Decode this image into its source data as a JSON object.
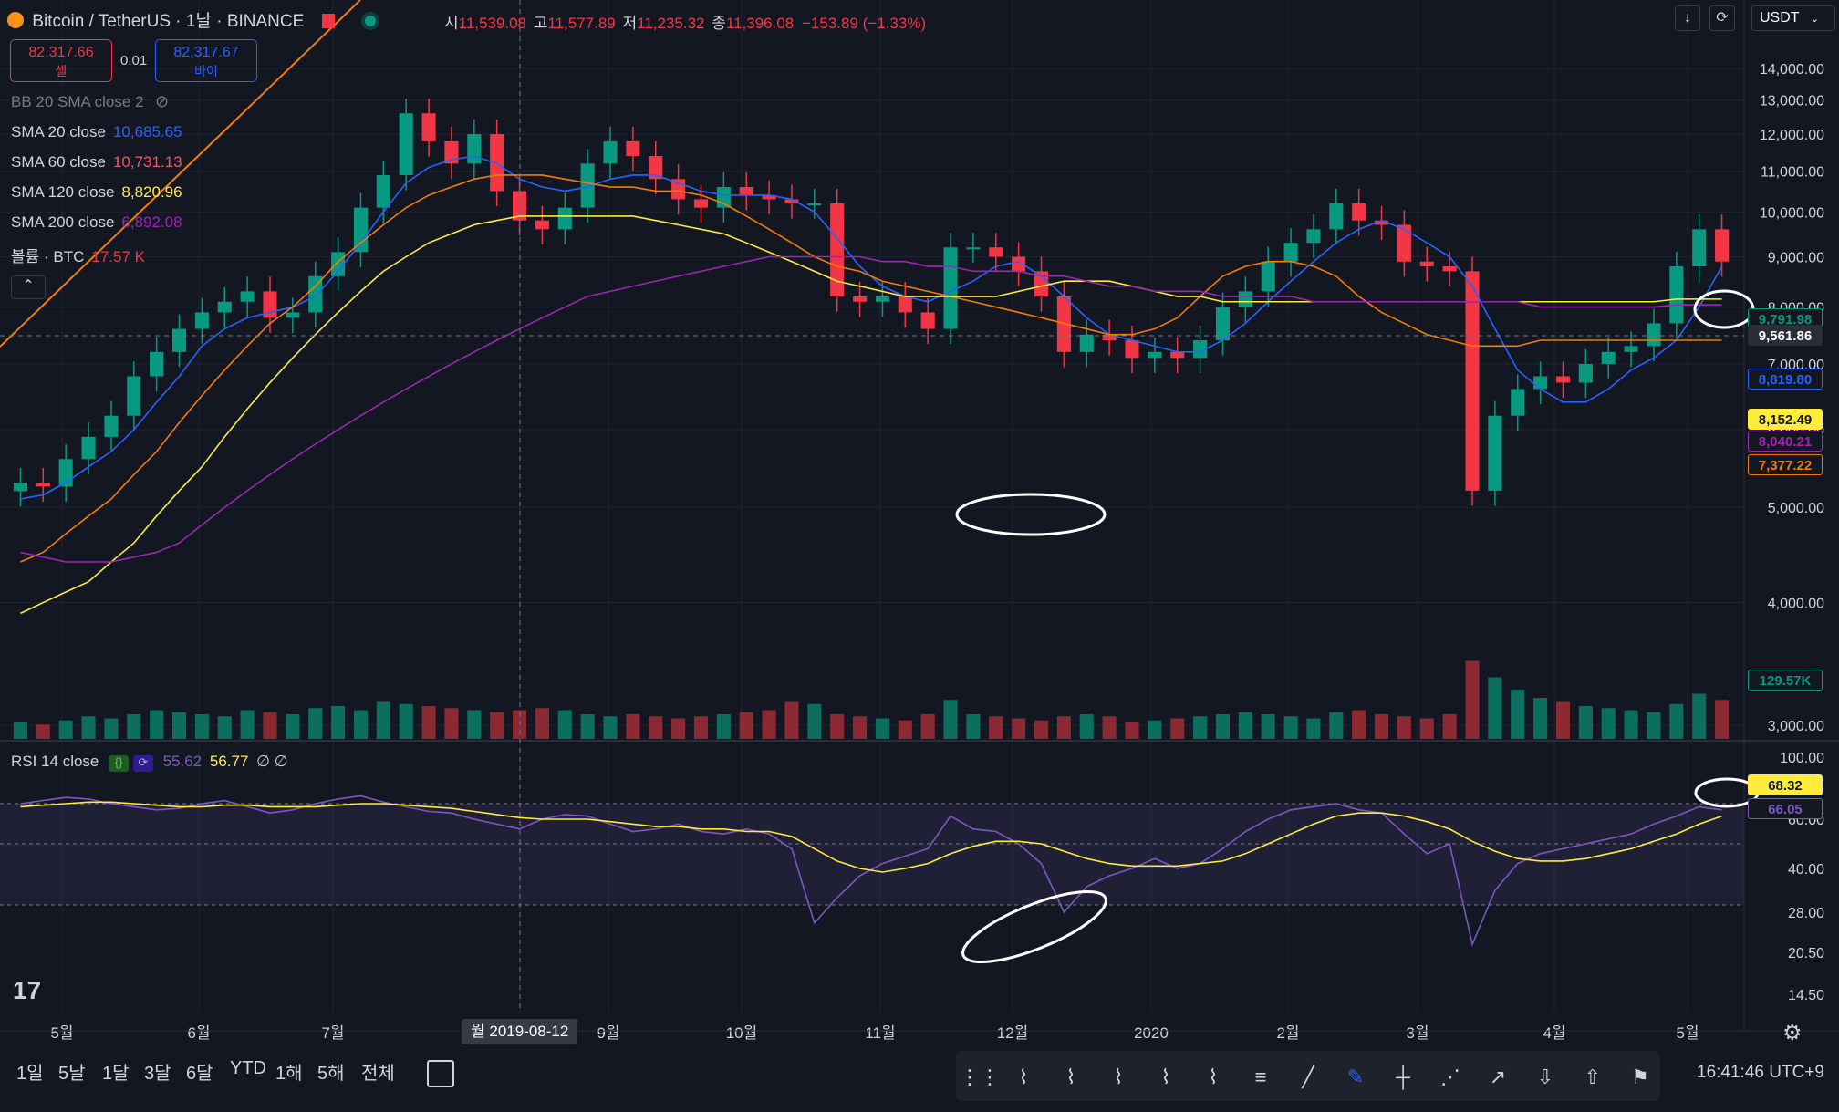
{
  "header": {
    "symbol": "Bitcoin / TetherUS · 1날 · BINANCE",
    "open_label": "시",
    "open": "11,539.08",
    "high_label": "고",
    "high": "11,577.89",
    "low_label": "저",
    "low": "11,235.32",
    "close_label": "종",
    "close": "11,396.08",
    "change": "−153.89 (−1.33%)",
    "currency": "USDT"
  },
  "order": {
    "sell_price": "82,317.66",
    "sell_label": "셀",
    "spread": "0.01",
    "buy_price": "82,317.67",
    "buy_label": "바이"
  },
  "indicators": [
    {
      "label": "BB 20 SMA close 2",
      "value": "",
      "color": "#787b86"
    },
    {
      "label": "SMA 20 close",
      "value": "10,685.65",
      "color": "#2962ff"
    },
    {
      "label": "SMA 60 close",
      "value": "10,731.13",
      "color": "#f7525f"
    },
    {
      "label": "SMA 120 close",
      "value": "8,820.96",
      "color": "#ffeb3b"
    },
    {
      "label": "SMA 200 close",
      "value": "6,892.08",
      "color": "#9c27b0"
    },
    {
      "label": "볼륨 · BTC",
      "value": "17.57 K",
      "color": "#f23645"
    }
  ],
  "rsi": {
    "label": "RSI 14 close",
    "value1": "55.62",
    "value2": "56.77",
    "value3": "∅ ∅"
  },
  "price_labels": [
    {
      "text": "9,791.98",
      "color": "#089981"
    },
    {
      "text": "9,561.86",
      "color": "#2a2e39"
    },
    {
      "text": "8,819.80",
      "color": "#2962ff"
    },
    {
      "text": "8,152.49",
      "color": "#ffeb3b"
    },
    {
      "text": "8,040.21",
      "color": "#9c27b0"
    },
    {
      "text": "7,377.22",
      "color": "#f57c00"
    },
    {
      "text": "129.57K",
      "color": "#089981"
    },
    {
      "text": "68.32",
      "color": "#ffeb3b"
    },
    {
      "text": "66.05",
      "color": "#7e57c2"
    }
  ],
  "crosshair_date": "월 2019-08-12",
  "toolbar": {
    "ranges": [
      "1일",
      "5날",
      "1달",
      "3달",
      "6달",
      "YTD",
      "1해",
      "5해",
      "전체"
    ],
    "clock": "16:41:46 UTC+9"
  },
  "colors": {
    "bg": "#131722",
    "up": "#089981",
    "down": "#f23645",
    "sma20": "#2962ff",
    "sma60": "#f57c00",
    "sma120": "#ffeb3b",
    "sma200": "#9c27b0",
    "rsi": "#7e57c2",
    "rsi_ma": "#ffeb3b"
  },
  "chart_data": [
    {
      "type": "candlestick",
      "title": "Bitcoin / TetherUS · 1날 · BINANCE",
      "x_ticks": [
        "5월",
        "6월",
        "7월",
        "월 2019-08-12",
        "9월",
        "10월",
        "11월",
        "12월",
        "2020",
        "2월",
        "3월",
        "4월",
        "5월"
      ],
      "y_ticks": [
        "14,000.00",
        "13,000.00",
        "12,000.00",
        "11,000.00",
        "10,000.00",
        "9,000.00",
        "8,000.00",
        "7,000.00",
        "6,000.00",
        "5,000.00",
        "4,000.00",
        "3,000.00"
      ],
      "ylim": [
        2800,
        14600
      ],
      "grid": true,
      "series": [
        {
          "name": "close",
          "values": [
            5300,
            5250,
            5600,
            5900,
            6200,
            6800,
            7200,
            7600,
            7900,
            8100,
            8300,
            7800,
            7900,
            8600,
            9100,
            10100,
            10900,
            12600,
            11800,
            11200,
            12000,
            10500,
            9800,
            9600,
            10100,
            11200,
            11800,
            11400,
            10800,
            10300,
            10100,
            10600,
            10400,
            10300,
            10200,
            10200,
            8200,
            8100,
            8200,
            7900,
            7600,
            9200,
            9200,
            9000,
            8700,
            8200,
            7200,
            7500,
            7400,
            7100,
            7200,
            7100,
            7400,
            8000,
            8300,
            8900,
            9300,
            9600,
            10200,
            9800,
            9700,
            8900,
            8800,
            8700,
            5200,
            6200,
            6600,
            6800,
            6700,
            7000,
            7200,
            7300,
            7700,
            8800,
            9600,
            8900
          ]
        },
        {
          "name": "SMA 20 close",
          "values": [
            5100,
            5150,
            5300,
            5500,
            5700,
            6000,
            6400,
            6800,
            7300,
            7600,
            7800,
            7900,
            8000,
            8200,
            8700,
            9300,
            10000,
            10700,
            11100,
            11300,
            11400,
            11200,
            10800,
            10600,
            10500,
            10600,
            10800,
            10900,
            10900,
            10700,
            10500,
            10400,
            10400,
            10400,
            10300,
            10000,
            9400,
            8800,
            8400,
            8200,
            8100,
            8300,
            8500,
            8800,
            8900,
            8600,
            8200,
            7800,
            7500,
            7400,
            7300,
            7200,
            7200,
            7400,
            7700,
            8100,
            8500,
            8900,
            9300,
            9600,
            9800,
            9600,
            9300,
            9000,
            8400,
            7600,
            6900,
            6600,
            6400,
            6400,
            6600,
            6900,
            7100,
            7400,
            8000,
            8800
          ]
        },
        {
          "name": "SMA 60 close",
          "values": [
            4400,
            4500,
            4700,
            4900,
            5100,
            5400,
            5700,
            6100,
            6500,
            6900,
            7300,
            7700,
            8000,
            8400,
            8900,
            9300,
            9700,
            10100,
            10400,
            10600,
            10800,
            10900,
            10900,
            10900,
            10800,
            10700,
            10600,
            10600,
            10500,
            10500,
            10400,
            10200,
            9900,
            9600,
            9300,
            9000,
            8800,
            8700,
            8500,
            8400,
            8300,
            8200,
            8100,
            8000,
            7900,
            7800,
            7700,
            7600,
            7500,
            7500,
            7600,
            7800,
            8200,
            8600,
            8800,
            8900,
            8900,
            8800,
            8600,
            8200,
            7900,
            7700,
            7500,
            7400,
            7300,
            7300,
            7300,
            7400,
            7400,
            7400,
            7400,
            7400,
            7400,
            7400,
            7400,
            7400
          ]
        },
        {
          "name": "SMA 120 close",
          "values": [
            3900,
            4000,
            4100,
            4200,
            4400,
            4600,
            4900,
            5200,
            5500,
            5900,
            6300,
            6700,
            7100,
            7500,
            7900,
            8300,
            8700,
            9000,
            9300,
            9500,
            9700,
            9800,
            9900,
            9900,
            9900,
            9900,
            9900,
            9900,
            9800,
            9700,
            9600,
            9500,
            9300,
            9100,
            8900,
            8700,
            8500,
            8400,
            8300,
            8200,
            8200,
            8200,
            8200,
            8200,
            8300,
            8400,
            8500,
            8500,
            8500,
            8400,
            8300,
            8200,
            8200,
            8100,
            8100,
            8100,
            8100,
            8100,
            8100,
            8100,
            8100,
            8100,
            8100,
            8100,
            8100,
            8100,
            8100,
            8100,
            8100,
            8100,
            8100,
            8100,
            8100,
            8150,
            8150,
            8150
          ]
        },
        {
          "name": "SMA 200 close",
          "values": [
            4500,
            4450,
            4400,
            4400,
            4400,
            4450,
            4500,
            4600,
            4800,
            5000,
            5200,
            5400,
            5600,
            5800,
            6000,
            6200,
            6400,
            6600,
            6800,
            7000,
            7200,
            7400,
            7600,
            7800,
            8000,
            8200,
            8300,
            8400,
            8500,
            8600,
            8700,
            8800,
            8900,
            9000,
            9000,
            9000,
            9000,
            9000,
            8900,
            8900,
            8800,
            8800,
            8700,
            8700,
            8700,
            8600,
            8600,
            8500,
            8400,
            8400,
            8300,
            8300,
            8300,
            8200,
            8200,
            8200,
            8200,
            8100,
            8100,
            8100,
            8100,
            8100,
            8100,
            8100,
            8100,
            8100,
            8100,
            8000,
            8000,
            8000,
            8000,
            8000,
            8000,
            8040,
            8040,
            8040
          ]
        }
      ]
    },
    {
      "type": "bar",
      "title": "볼륨 · BTC",
      "series": [
        {
          "name": "볼륨 · BTC",
          "values": [
            40,
            35,
            45,
            55,
            50,
            60,
            70,
            65,
            60,
            55,
            70,
            65,
            60,
            75,
            80,
            70,
            90,
            85,
            80,
            75,
            70,
            65,
            70,
            75,
            70,
            60,
            55,
            60,
            55,
            50,
            55,
            60,
            65,
            70,
            90,
            85,
            60,
            55,
            50,
            45,
            60,
            95,
            60,
            55,
            50,
            45,
            55,
            60,
            55,
            40,
            45,
            50,
            55,
            60,
            65,
            60,
            55,
            50,
            65,
            70,
            60,
            55,
            50,
            60,
            190,
            150,
            120,
            100,
            90,
            80,
            75,
            70,
            65,
            85,
            110,
            95
          ]
        }
      ]
    },
    {
      "type": "line",
      "title": "RSI 14 close",
      "y_ticks": [
        "100.00",
        "60.00",
        "40.00",
        "28.00",
        "20.50",
        "14.50"
      ],
      "ylim": [
        10,
        100
      ],
      "series": [
        {
          "name": "RSI",
          "values": [
            70,
            72,
            74,
            73,
            70,
            68,
            66,
            67,
            70,
            72,
            68,
            64,
            66,
            70,
            73,
            75,
            71,
            68,
            65,
            64,
            60,
            58,
            56,
            60,
            63,
            62,
            58,
            55,
            56,
            58,
            55,
            54,
            56,
            54,
            48,
            26,
            32,
            38,
            42,
            45,
            48,
            62,
            56,
            55,
            50,
            42,
            28,
            35,
            38,
            40,
            44,
            40,
            42,
            48,
            55,
            60,
            66,
            68,
            70,
            66,
            64,
            54,
            46,
            50,
            22,
            34,
            42,
            46,
            48,
            50,
            52,
            54,
            58,
            62,
            68,
            66
          ]
        },
        {
          "name": "RSI MA",
          "values": [
            68,
            69,
            70,
            71,
            71,
            70,
            69,
            68,
            68,
            69,
            69,
            68,
            68,
            68,
            69,
            70,
            70,
            69,
            68,
            67,
            65,
            63,
            61,
            60,
            60,
            60,
            59,
            58,
            57,
            57,
            56,
            56,
            55,
            55,
            53,
            48,
            43,
            40,
            39,
            40,
            42,
            46,
            49,
            51,
            51,
            50,
            47,
            44,
            42,
            41,
            41,
            41,
            42,
            43,
            46,
            50,
            54,
            58,
            62,
            64,
            64,
            62,
            59,
            56,
            51,
            47,
            44,
            43,
            43,
            44,
            46,
            48,
            51,
            54,
            58,
            62
          ]
        }
      ]
    }
  ]
}
